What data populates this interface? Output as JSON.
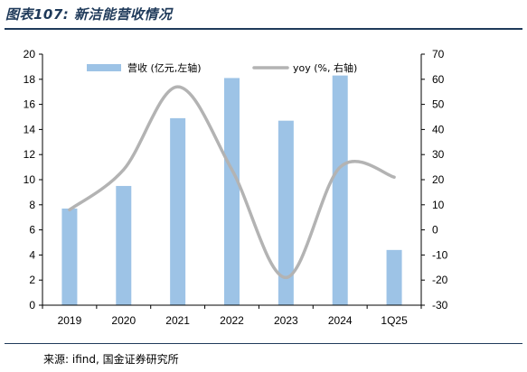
{
  "title": "图表107: 新洁能营收情况",
  "source": "来源: ifind, 国金证券研究所",
  "chart_data": {
    "type": "bar",
    "categories": [
      "2019",
      "2020",
      "2021",
      "2022",
      "2023",
      "2024",
      "1Q25"
    ],
    "series": [
      {
        "name": "营收 (亿元,左轴)",
        "type": "bar",
        "axis": "left",
        "color": "#9dc3e6",
        "values": [
          7.7,
          9.5,
          14.9,
          18.1,
          14.7,
          18.3,
          4.4
        ]
      },
      {
        "name": "yoy (%, 右轴)",
        "type": "line",
        "axis": "right",
        "color": "#b3b3b3",
        "values": [
          8,
          24,
          57,
          24,
          -19,
          25,
          21
        ]
      }
    ],
    "y_left": {
      "lim": [
        0,
        20
      ],
      "ticks": [
        "0",
        "2",
        "4",
        "6",
        "8",
        "10",
        "12",
        "14",
        "16",
        "18",
        "20"
      ]
    },
    "y_right": {
      "lim": [
        -30,
        70
      ],
      "ticks": [
        "-30",
        "-20",
        "-10",
        "0",
        "10",
        "20",
        "30",
        "40",
        "50",
        "60",
        "70"
      ]
    },
    "legend_position": "top",
    "grid": false
  }
}
